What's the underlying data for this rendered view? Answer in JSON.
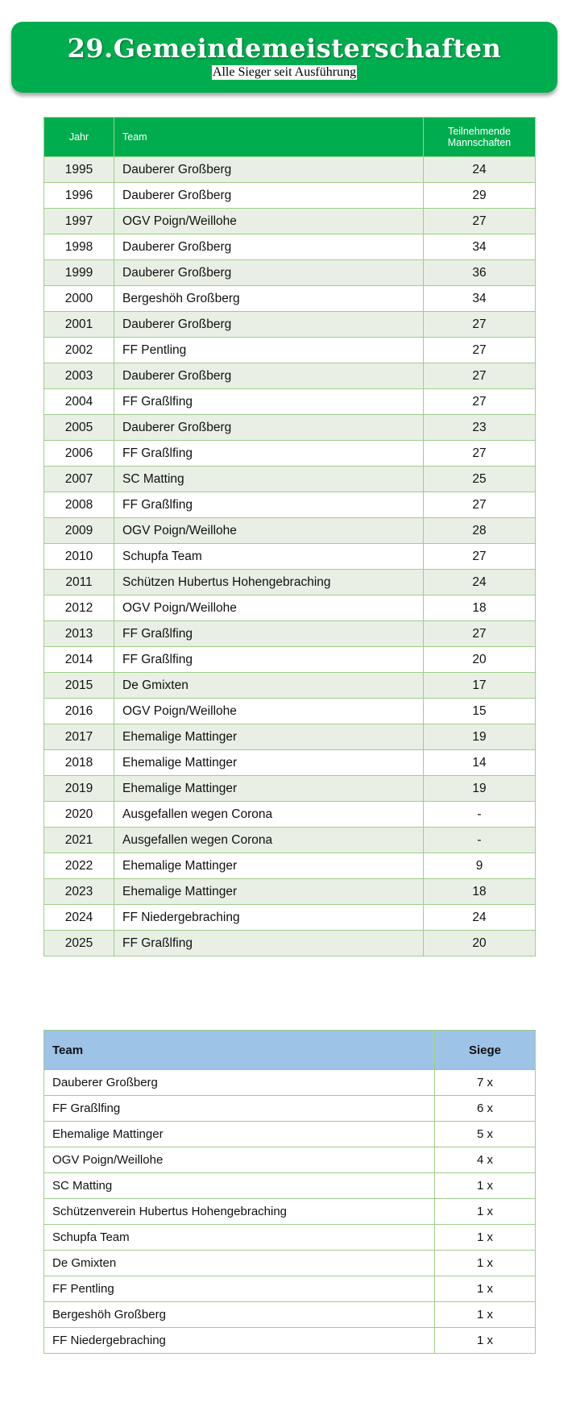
{
  "header": {
    "title": "29.Gemeindemeisterschaften",
    "subtitle": "Alle Sieger seit Ausführung"
  },
  "winners": {
    "columns": [
      "Jahr",
      "Team",
      "Teilnehmende Mannschaften"
    ],
    "rows": [
      [
        "1995",
        "Dauberer Großberg",
        "24"
      ],
      [
        "1996",
        "Dauberer Großberg",
        "29"
      ],
      [
        "1997",
        "OGV Poign/Weillohe",
        "27"
      ],
      [
        "1998",
        "Dauberer Großberg",
        "34"
      ],
      [
        "1999",
        "Dauberer Großberg",
        "36"
      ],
      [
        "2000",
        "Bergeshöh Großberg",
        "34"
      ],
      [
        "2001",
        "Dauberer Großberg",
        "27"
      ],
      [
        "2002",
        "FF Pentling",
        "27"
      ],
      [
        "2003",
        "Dauberer Großberg",
        "27"
      ],
      [
        "2004",
        "FF Graßlfing",
        "27"
      ],
      [
        "2005",
        "Dauberer Großberg",
        "23"
      ],
      [
        "2006",
        "FF Graßlfing",
        "27"
      ],
      [
        "2007",
        "SC Matting",
        "25"
      ],
      [
        "2008",
        "FF Graßlfing",
        "27"
      ],
      [
        "2009",
        "OGV Poign/Weillohe",
        "28"
      ],
      [
        "2010",
        "Schupfa Team",
        "27"
      ],
      [
        "2011",
        "Schützen Hubertus Hohengebraching",
        "24"
      ],
      [
        "2012",
        "OGV Poign/Weillohe",
        "18"
      ],
      [
        "2013",
        "FF Graßlfing",
        "27"
      ],
      [
        "2014",
        "FF Graßlfing",
        "20"
      ],
      [
        "2015",
        "De Gmixten",
        "17"
      ],
      [
        "2016",
        "OGV Poign/Weillohe",
        "15"
      ],
      [
        "2017",
        "Ehemalige Mattinger",
        "19"
      ],
      [
        "2018",
        "Ehemalige Mattinger",
        "14"
      ],
      [
        "2019",
        "Ehemalige Mattinger",
        "19"
      ],
      [
        "2020",
        "Ausgefallen wegen Corona",
        "-"
      ],
      [
        "2021",
        "Ausgefallen wegen Corona",
        "-"
      ],
      [
        "2022",
        "Ehemalige Mattinger",
        "9"
      ],
      [
        "2023",
        "Ehemalige Mattinger",
        "18"
      ],
      [
        "2024",
        "FF Niedergebraching",
        "24"
      ],
      [
        "2025",
        "FF Graßlfing",
        "20"
      ]
    ]
  },
  "summary": {
    "columns": [
      "Team",
      "Siege"
    ],
    "rows": [
      [
        "Dauberer Großberg",
        "7 x"
      ],
      [
        "FF Graßlfing",
        "6 x"
      ],
      [
        "Ehemalige Mattinger",
        "5 x"
      ],
      [
        "OGV Poign/Weillohe",
        "4 x"
      ],
      [
        "SC Matting",
        "1 x"
      ],
      [
        "Schützenverein Hubertus Hohengebraching",
        "1 x"
      ],
      [
        "Schupfa Team",
        "1 x"
      ],
      [
        "De Gmixten",
        "1 x"
      ],
      [
        "FF Pentling",
        "1 x"
      ],
      [
        "Bergeshöh Großberg",
        "1 x"
      ],
      [
        "FF Niedergebraching",
        "1 x"
      ]
    ]
  }
}
